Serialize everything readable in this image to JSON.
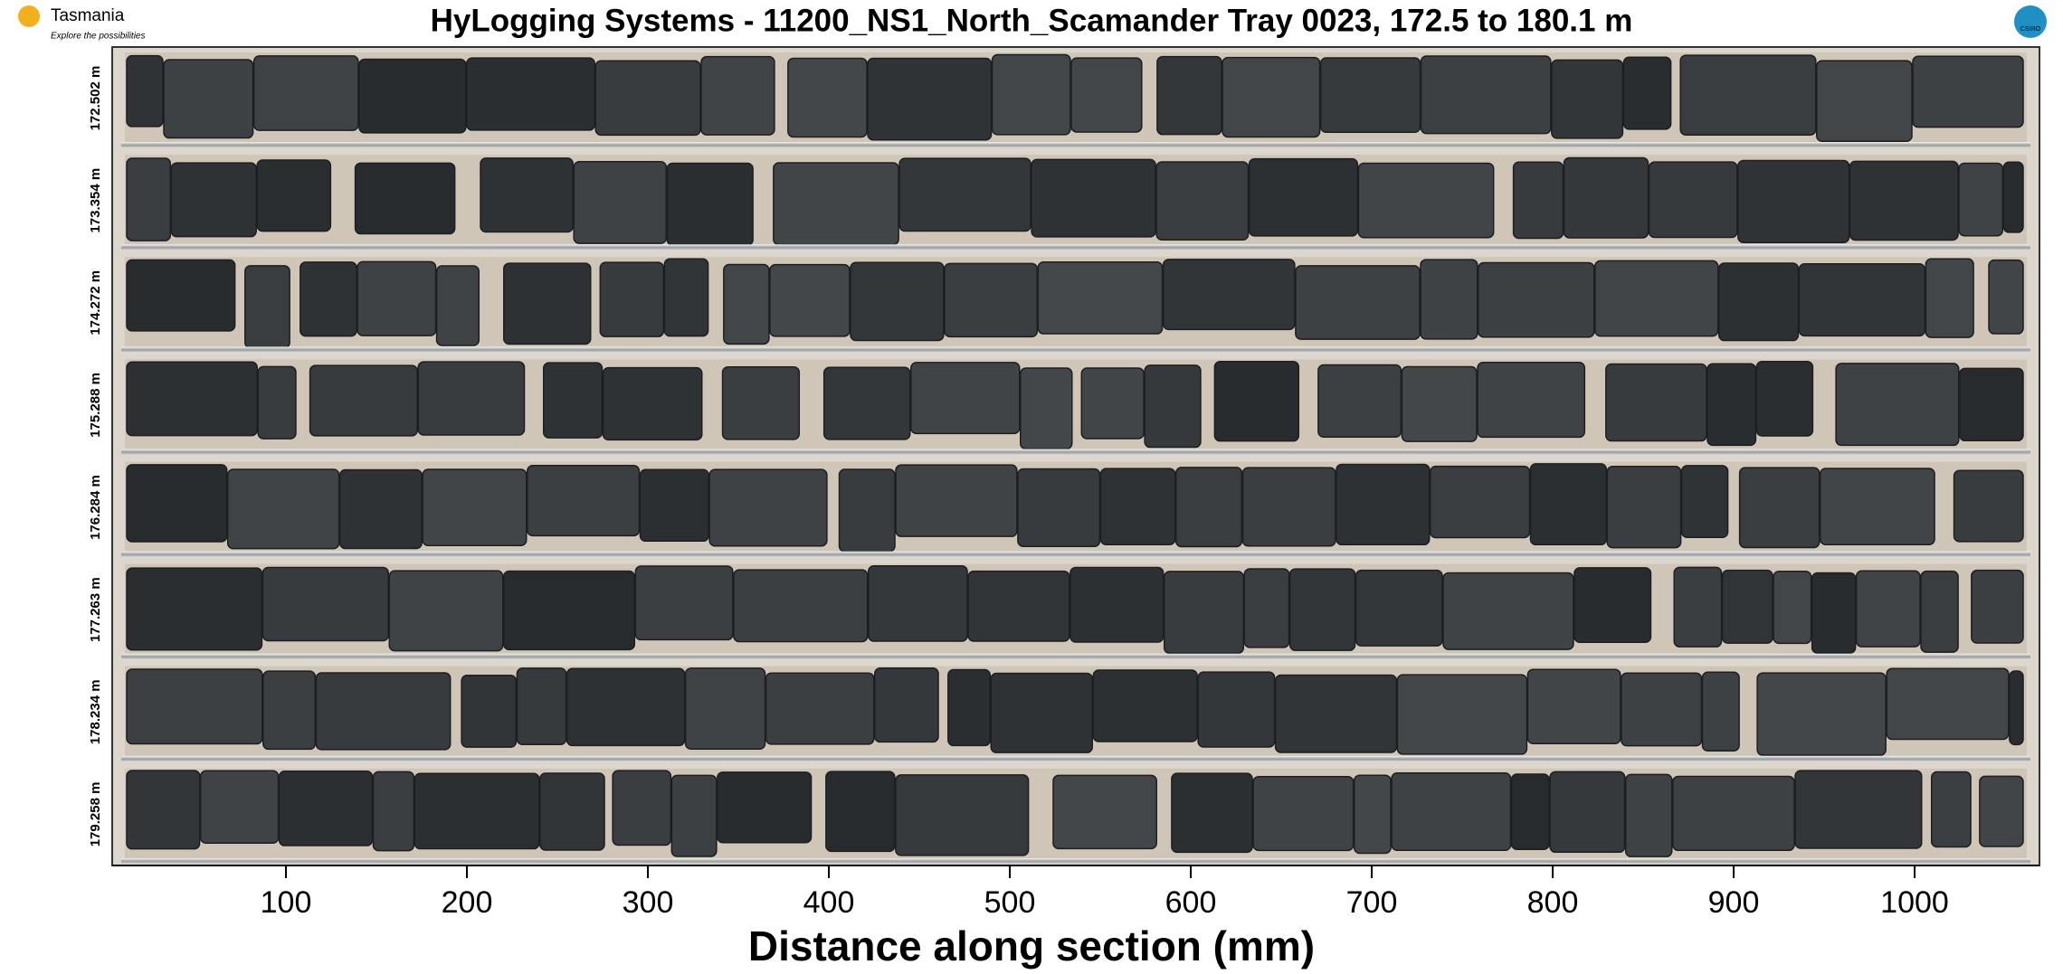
{
  "chart_data": {
    "type": "core-tray",
    "title": "HyLogging Systems  -  11200_NS1_North_Scamander  Tray 0023,  172.5 to 180.1 m",
    "logo_left": "Tasmania",
    "logo_left_tagline": "Explore the possibilities",
    "logo_right": "CSIRO",
    "rows": [
      "172.502 m",
      "173.354 m",
      "174.272 m",
      "175.288 m",
      "176.284 m",
      "177.263 m",
      "178.234 m",
      "179.258 m"
    ],
    "xlabel": "Distance along section (mm)",
    "xlim": [
      4,
      1069
    ],
    "xticks": [
      100,
      200,
      300,
      400,
      500,
      600,
      700,
      800,
      900,
      1000
    ]
  }
}
